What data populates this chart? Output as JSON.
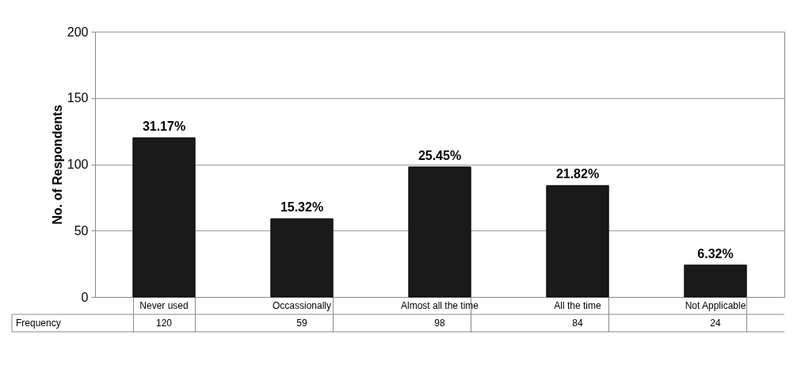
{
  "chart_data": {
    "type": "bar",
    "ylabel": "No. of Respondents",
    "categories": [
      "Never used",
      "Occassionally",
      "Almost all the time",
      "All the time",
      "Not Applicable"
    ],
    "values": [
      120,
      59,
      98,
      84,
      24
    ],
    "color": "#1a1a1a",
    "value_labels": [
      "120",
      "59",
      "98",
      "84",
      "24"
    ],
    "annotations": [
      {
        "text": "31.17%",
        "x": "Never used",
        "y": 120
      },
      {
        "text": "15.32%",
        "x": "Occassionally",
        "y": 59
      },
      {
        "text": "25.45%",
        "x": "Almost all the time",
        "y": 98
      },
      {
        "text": "21.82%",
        "x": "All the time",
        "y": 84
      },
      {
        "text": "6.32%",
        "x": "Not Applicable",
        "y": 24
      },
      "Frequency"
    ],
    "ylim": [
      0,
      200
    ],
    "yticks": [
      0,
      50,
      100,
      150,
      200
    ],
    "grid": "y"
  }
}
